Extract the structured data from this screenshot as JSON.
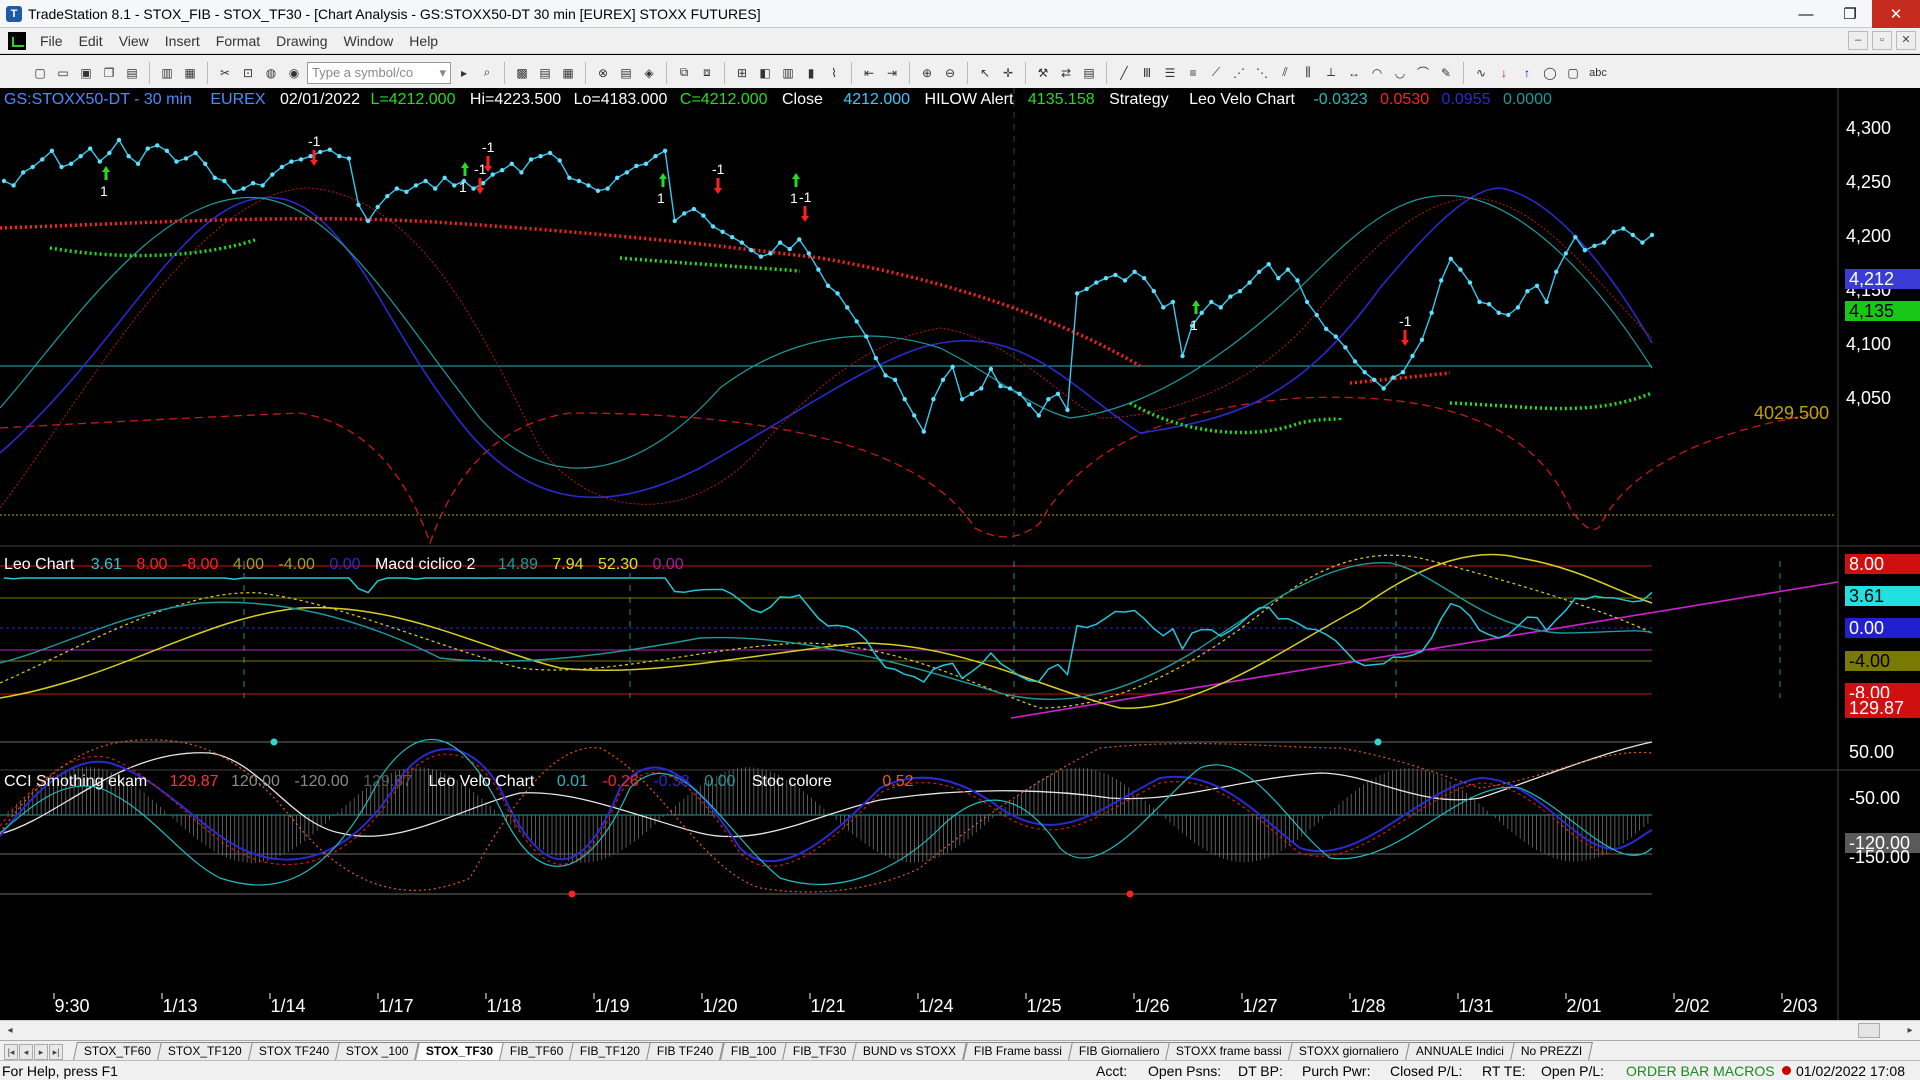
{
  "window": {
    "title": "TradeStation 8.1 - STOX_FIB - STOX_TF30 - [Chart Analysis - GS:STOXX50-DT  30 min  [EUREX] STOXX FUTURES]",
    "minimize": "—",
    "restore": "❐",
    "close": "✕"
  },
  "menu": [
    "File",
    "Edit",
    "View",
    "Insert",
    "Format",
    "Drawing",
    "Window",
    "Help"
  ],
  "toolbar": {
    "symbol_placeholder": "Type a symbol/co",
    "abc": "abc"
  },
  "header1": {
    "symbol": "GS:STOXX50-DT - 30 min",
    "exchange": "EUREX",
    "date": "02/01/2022",
    "last": "L=4212.000",
    "hi": "Hi=4223.500",
    "lo": "Lo=4183.000",
    "close": "C=4212.000",
    "close_label": "Close",
    "close_val": "4212.000",
    "hilow": "HILOW Alert",
    "hilow_val": "4135.158",
    "strategy": "Strategy",
    "leo": "Leo Velo Chart",
    "leo1": "-0.0323",
    "leo2": "0.0530",
    "leo3": "0.0955",
    "leo4": "0.0000"
  },
  "header2": {
    "name": "Leo Chart",
    "v1": "3.61",
    "v2": "8.00",
    "v3": "-8.00",
    "v4": "4.00",
    "v5": "-4.00",
    "v6": "0.00",
    "macd": "Macd ciclico 2",
    "m1": "14.89",
    "m2": "7.94",
    "m3": "52.30",
    "m4": "0.00"
  },
  "header3": {
    "name": "CCI Smothing ekam",
    "c1": "129.87",
    "c2": "120.00",
    "c3": "-120.00",
    "c4": "129.87",
    "leo": "Leo Velo Chart",
    "l1": "0.01",
    "l2": "-0.26",
    "l3": "-0.38",
    "l4": "0.00",
    "stoc": "Stoc colore",
    "s1": "0.52"
  },
  "chart_data": {
    "type": "line",
    "title": "GS:STOXX50-DT - 30 min",
    "price_axis": [
      "4,300",
      "4,250",
      "4,200",
      "4,150",
      "4,100",
      "4,050"
    ],
    "price_tags": {
      "last": "4,212",
      "hilow": "4,135",
      "level": "4029.500"
    },
    "osc_tags": [
      "8.00",
      "3.61",
      "0.00",
      "-4.00",
      "-8.00"
    ],
    "cci_axis": [
      "129.87",
      "50.00",
      "-50.00",
      "-120.00",
      "-150.00"
    ],
    "x_labels": [
      "9:30",
      "1/13",
      "1/14",
      "1/17",
      "1/18",
      "1/19",
      "1/20",
      "1/21",
      "1/24",
      "1/25",
      "1/26",
      "1/27",
      "1/28",
      "1/31",
      "2/01",
      "2/02",
      "2/03"
    ],
    "signals": [
      "-1",
      "1",
      "-1",
      "1",
      "-1",
      "1",
      "-1",
      "1",
      "-1",
      "1",
      "-1"
    ],
    "price_series": {
      "name": "Close",
      "values": [
        4262,
        4258,
        4270,
        4275,
        4282,
        4290,
        4275,
        4278,
        4285,
        4292,
        4280,
        4288,
        4300,
        4285,
        4278,
        4292,
        4295,
        4290,
        4280,
        4283,
        4288,
        4278,
        4265,
        4262,
        4252,
        4255,
        4260,
        4258,
        4268,
        4275,
        4280,
        4282,
        4285,
        4289,
        4291,
        4285,
        4283,
        4240,
        4225,
        4238,
        4248,
        4255,
        4252,
        4258,
        4262,
        4255,
        4265,
        4258,
        4262,
        4255,
        4260,
        4268,
        4272,
        4278,
        4270,
        4282,
        4285,
        4288,
        4281,
        4265,
        4262,
        4258,
        4253,
        4255,
        4265,
        4270,
        4276,
        4278,
        4285,
        4290,
        4225,
        4232,
        4236,
        4230,
        4220,
        4215,
        4210,
        4205,
        4198,
        4192,
        4195,
        4205,
        4199,
        4208,
        4195,
        4180,
        4165,
        4158,
        4145,
        4132,
        4118,
        4098,
        4082,
        4078,
        4060,
        4045,
        4030,
        4060,
        4078,
        4090,
        4060,
        4065,
        4070,
        4088,
        4072,
        4070,
        4065,
        4055,
        4045,
        4060,
        4065,
        4050,
        4158,
        4162,
        4168,
        4172,
        4175,
        4170,
        4178,
        4172,
        4160,
        4145,
        4150,
        4100,
        4128,
        4140,
        4150,
        4145,
        4155,
        4160,
        4168,
        4178,
        4185,
        4172,
        4180,
        4170,
        4150,
        4138,
        4125,
        4118,
        4108,
        4095,
        4085,
        4078,
        4070,
        4080,
        4085,
        4100,
        4115,
        4140,
        4170,
        4190,
        4180,
        4168,
        4150,
        4148,
        4140,
        4138,
        4145,
        4160,
        4165,
        4150,
        4178,
        4195,
        4210,
        4198,
        4202,
        4205,
        4215,
        4218,
        4212,
        4205,
        4212
      ]
    }
  },
  "tabs": [
    "STOX_TF60",
    "STOX_TF120",
    "STOX TF240",
    "STOX _100",
    "STOX_TF30",
    "FIB_TF60",
    "FIB_TF120",
    "FIB TF240",
    "FIB_100",
    "FIB_TF30",
    "BUND vs STOXX",
    "FIB Frame bassi",
    "FIB Giornaliero",
    "STOXX frame bassi",
    "STOXX giornaliero",
    "ANNUALE Indici",
    "No PREZZI"
  ],
  "active_tab": "STOX_TF30",
  "status": {
    "help": "For Help, press F1",
    "acct": "Acct:",
    "open_psns": "Open Psns:",
    "dt_bp": "DT BP:",
    "purch": "Purch Pwr:",
    "closed": "Closed P/L:",
    "rt": "RT TE:",
    "open_pl": "Open P/L:",
    "macros": "ORDER BAR  MACROS",
    "clock": "01/02/2022 17:08"
  }
}
